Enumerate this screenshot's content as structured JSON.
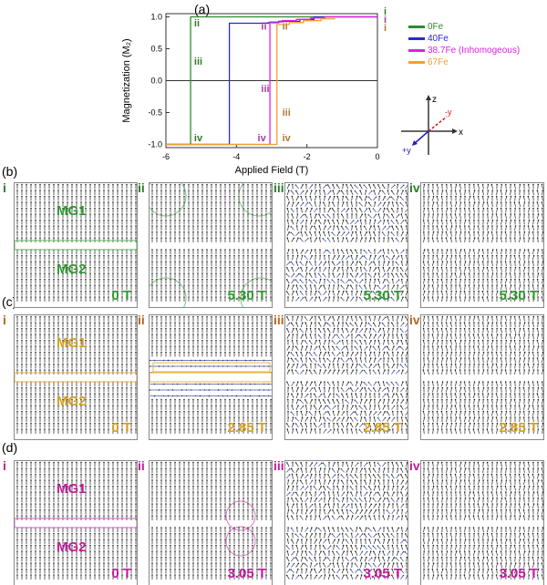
{
  "panel_labels": [
    "(a)",
    "(b)",
    "(c)",
    "(d)"
  ],
  "chart_data": {
    "type": "line",
    "xlabel": "Applied Field (T)",
    "ylabel": "Magnetization (M₂)",
    "xlim": [
      -6,
      0
    ],
    "ylim": [
      -1.05,
      1.05
    ],
    "xticks": [
      "-6",
      "-4",
      "-2",
      "0"
    ],
    "yticks": [
      "-1.0",
      "-0.5",
      "0.0",
      "0.5",
      "1.0"
    ],
    "legend_position": "right",
    "series": [
      {
        "name": "0Fe",
        "color": "#2e8b2e",
        "points": [
          [
            -6,
            -1
          ],
          [
            -5.3,
            -1
          ],
          [
            -5.3,
            1
          ],
          [
            0,
            1
          ]
        ]
      },
      {
        "name": "40Fe",
        "color": "#2a2ad0",
        "points": [
          [
            -6,
            -1
          ],
          [
            -4.2,
            -1
          ],
          [
            -4.2,
            0.9
          ],
          [
            -3.1,
            0.9
          ],
          [
            -3.1,
            0.91
          ],
          [
            -2.8,
            0.91
          ],
          [
            -2.8,
            0.93
          ],
          [
            -2.2,
            0.93
          ],
          [
            -2.2,
            0.96
          ],
          [
            -1.8,
            0.96
          ],
          [
            -1.8,
            1
          ],
          [
            0,
            1
          ]
        ]
      },
      {
        "name": "38.7Fe (Inhomogeous)",
        "color": "#e020e0",
        "points": [
          [
            -6,
            -1
          ],
          [
            -3.05,
            -1
          ],
          [
            -3.05,
            0.92
          ],
          [
            -2.7,
            0.92
          ],
          [
            -2.7,
            0.94
          ],
          [
            -2.3,
            0.94
          ],
          [
            -2.3,
            0.96
          ],
          [
            -1.9,
            0.96
          ],
          [
            -1.9,
            0.98
          ],
          [
            -1.5,
            0.98
          ],
          [
            -1.5,
            1
          ],
          [
            0,
            1
          ]
        ]
      },
      {
        "name": "67Fe",
        "color": "#f0a030",
        "points": [
          [
            -6,
            -1
          ],
          [
            -2.85,
            -1
          ],
          [
            -2.85,
            0.88
          ],
          [
            -2.5,
            0.88
          ],
          [
            -2.5,
            0.91
          ],
          [
            -2.1,
            0.91
          ],
          [
            -2.1,
            0.94
          ],
          [
            -1.6,
            0.94
          ],
          [
            -1.6,
            0.97
          ],
          [
            -1.2,
            0.97
          ]
        ]
      }
    ],
    "annotations": [
      {
        "text": "ii",
        "x": -5.2,
        "y": 0.85,
        "color": "#2e7d2e"
      },
      {
        "text": "iii",
        "x": -5.2,
        "y": 0.25,
        "color": "#2e7d2e"
      },
      {
        "text": "iv",
        "x": -5.2,
        "y": -0.95,
        "color": "#2e7d2e"
      },
      {
        "text": "ii",
        "x": -3.3,
        "y": 0.8,
        "color": "#a040a0"
      },
      {
        "text": "iii",
        "x": -3.3,
        "y": -0.18,
        "color": "#a040a0"
      },
      {
        "text": "iv",
        "x": -3.4,
        "y": -0.95,
        "color": "#a040a0"
      },
      {
        "text": "ii",
        "x": -2.7,
        "y": 0.8,
        "color": "#b07a30"
      },
      {
        "text": "iii",
        "x": -2.7,
        "y": -0.55,
        "color": "#b07a30"
      },
      {
        "text": "iv",
        "x": -2.7,
        "y": -0.95,
        "color": "#b07a30"
      }
    ],
    "right_labels": [
      {
        "text": "i",
        "color": "#2e7d2e"
      },
      {
        "text": "i",
        "color": "#a040a0"
      },
      {
        "text": "i",
        "color": "#b07a30"
      }
    ]
  },
  "axes_glyph": {
    "z": "z",
    "x": "x",
    "plus_y": "+y",
    "minus_y": "-y"
  },
  "rows": [
    {
      "color": "#2e9a2e",
      "numcolor": "#2e7d2e",
      "panels": [
        {
          "num": "i",
          "field": "0 T",
          "mg1": "MG1",
          "mg2": "MG2",
          "band": "#5cb85c"
        },
        {
          "num": "ii",
          "field": "5.30 T",
          "circles": true
        },
        {
          "num": "iii",
          "field": "5.30 T"
        },
        {
          "num": "iv",
          "field": "5.30 T"
        }
      ]
    },
    {
      "color": "#d4a020",
      "numcolor": "#b5651d",
      "panels": [
        {
          "num": "i",
          "field": "0 T",
          "mg1": "MG1",
          "mg2": "MG2",
          "band": "#e8b040"
        },
        {
          "num": "ii",
          "field": "2.85 T",
          "band": "#e8b040"
        },
        {
          "num": "iii",
          "field": "2.85 T"
        },
        {
          "num": "iv",
          "field": "2.85 T"
        }
      ]
    },
    {
      "color": "#c41a9a",
      "numcolor": "#c41a9a",
      "panels": [
        {
          "num": "i",
          "field": "0 T",
          "mg1": "MG1",
          "mg2": "MG2",
          "band": "#d060d0"
        },
        {
          "num": "ii",
          "field": "3.05 T",
          "circles": true
        },
        {
          "num": "iii",
          "field": "3.05 T"
        },
        {
          "num": "iv",
          "field": "3.05 T"
        }
      ]
    }
  ]
}
